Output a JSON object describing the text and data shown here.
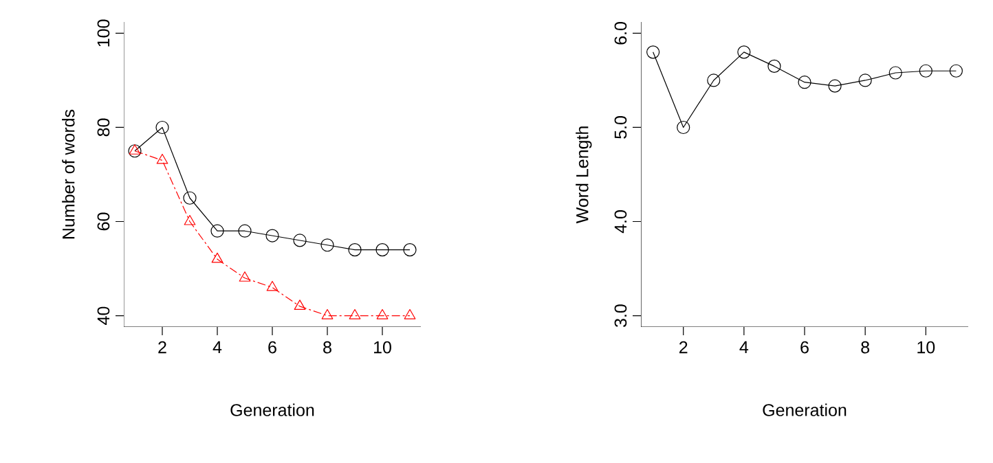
{
  "chart_data": [
    {
      "type": "line",
      "xlabel": "Generation",
      "ylabel": "Number of words",
      "x": [
        1,
        2,
        3,
        4,
        5,
        6,
        7,
        8,
        9,
        10,
        11
      ],
      "xlim": [
        0.6,
        11.4
      ],
      "ylim": [
        37.6,
        102.4
      ],
      "xticks": [
        2,
        4,
        6,
        8,
        10
      ],
      "yticks": [
        40,
        60,
        80,
        100
      ],
      "grid": false,
      "series": [
        {
          "color": "#000000",
          "marker": "circle",
          "line_style": "solid",
          "values": [
            75,
            80,
            65,
            58,
            58,
            57,
            56,
            55,
            54,
            54,
            54
          ]
        },
        {
          "color": "#ff0000",
          "marker": "triangle",
          "line_style": "dashed",
          "values": [
            75,
            73,
            60,
            52,
            48,
            46,
            42,
            40,
            40,
            40,
            40
          ]
        }
      ]
    },
    {
      "type": "line",
      "xlabel": "Generation",
      "ylabel": "Word Length",
      "x": [
        1,
        2,
        3,
        4,
        5,
        6,
        7,
        8,
        9,
        10,
        11
      ],
      "xlim": [
        0.6,
        11.4
      ],
      "ylim": [
        2.88,
        6.12
      ],
      "xticks": [
        2,
        4,
        6,
        8,
        10
      ],
      "yticks": [
        {
          "value": 3,
          "label": "3.0"
        },
        {
          "value": 4,
          "label": "4.0"
        },
        {
          "value": 5,
          "label": "5.0"
        },
        {
          "value": 6,
          "label": "6.0"
        }
      ],
      "grid": false,
      "series": [
        {
          "color": "#000000",
          "marker": "circle",
          "line_style": "solid",
          "values": [
            5.8,
            5.0,
            5.5,
            5.8,
            5.65,
            5.48,
            5.44,
            5.5,
            5.58,
            5.6,
            5.6
          ]
        }
      ]
    }
  ]
}
